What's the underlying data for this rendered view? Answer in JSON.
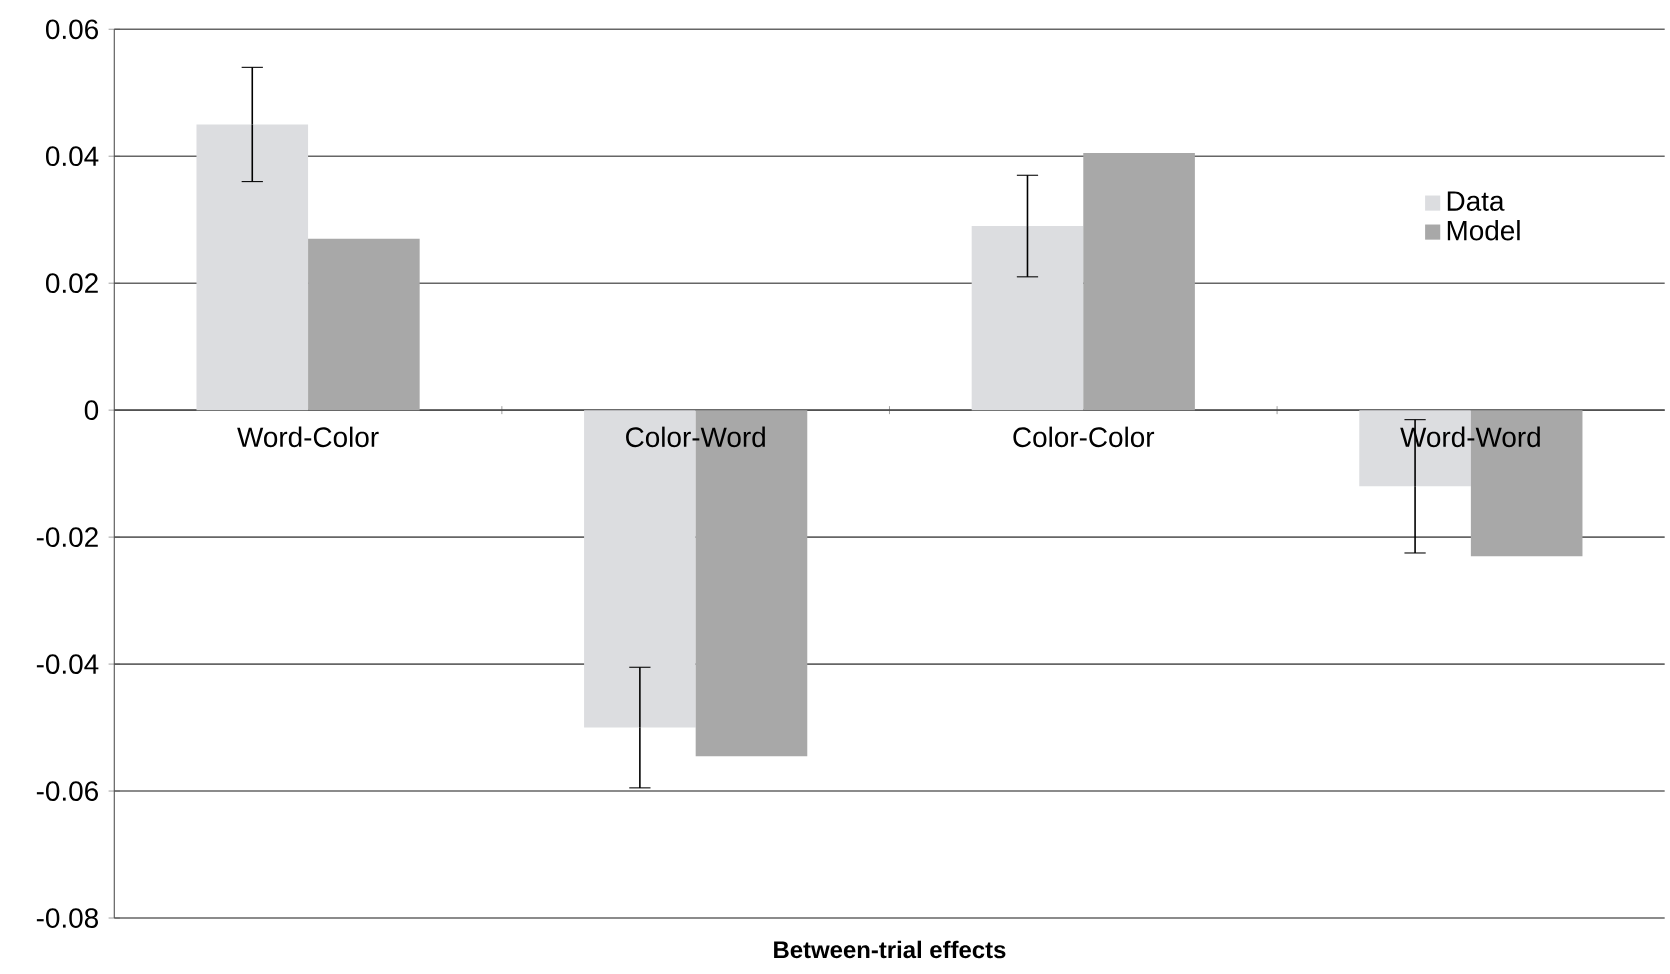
{
  "chart_data": {
    "type": "bar",
    "xlabel": "Between-trial effects",
    "categories": [
      "Word-Color",
      "Color-Word",
      "Color-Color",
      "Word-Word"
    ],
    "series": [
      {
        "name": "Data",
        "color": "#dcdde0",
        "values": [
          0.045,
          -0.05,
          0.029,
          -0.012
        ],
        "errors": [
          0.009,
          0.0095,
          0.008,
          0.0105
        ]
      },
      {
        "name": "Model",
        "color": "#a8a8a8",
        "values": [
          0.027,
          -0.0545,
          0.0405,
          -0.023
        ]
      }
    ],
    "ylim": [
      -0.08,
      0.06
    ],
    "yticks": [
      -0.08,
      -0.06,
      -0.04,
      -0.02,
      0,
      0.02,
      0.04,
      0.06
    ],
    "grid": "y",
    "legend": "right"
  }
}
